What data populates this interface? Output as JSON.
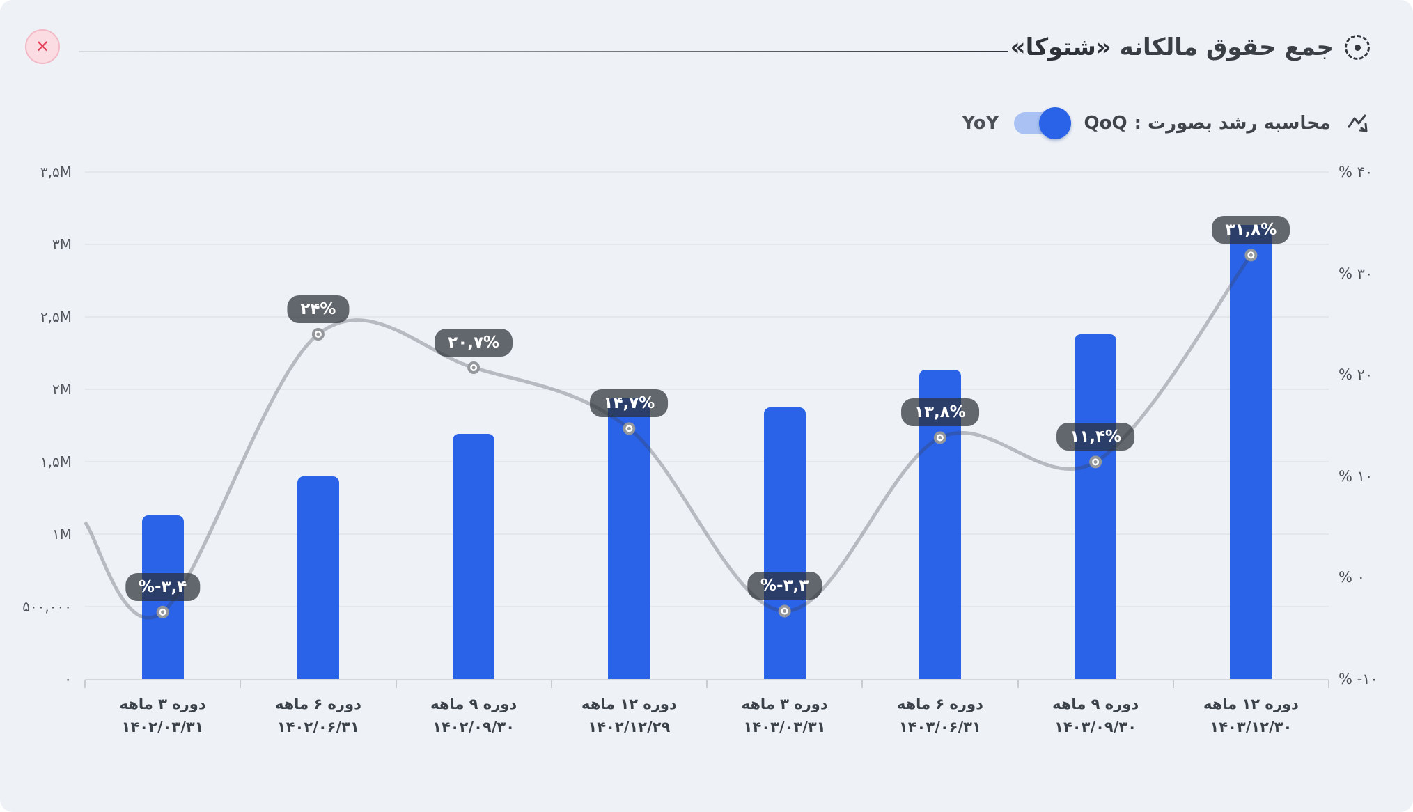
{
  "header": {
    "title_prefix": "جمع حقوق مالکانه ",
    "title_company": "«شتوکا»",
    "close_icon": "✕"
  },
  "controls": {
    "growth_label": "محاسبه رشد بصورت :",
    "selected_option": "QoQ",
    "alt_option": "YoY",
    "accent_color": "#2a63e8",
    "track_color": "#a9c2f3"
  },
  "chart_data": {
    "type": "bar",
    "title": "جمع حقوق مالکانه «شتوکا»",
    "categories": [
      {
        "period": "دوره ۳ ماهه",
        "date": "۱۴۰۲/۰۳/۳۱"
      },
      {
        "period": "دوره ۶ ماهه",
        "date": "۱۴۰۲/۰۶/۳۱"
      },
      {
        "period": "دوره ۹ ماهه",
        "date": "۱۴۰۲/۰۹/۳۰"
      },
      {
        "period": "دوره ۱۲ ماهه",
        "date": "۱۴۰۲/۱۲/۲۹"
      },
      {
        "period": "دوره ۳ ماهه",
        "date": "۱۴۰۳/۰۳/۳۱"
      },
      {
        "period": "دوره ۶ ماهه",
        "date": "۱۴۰۳/۰۶/۳۱"
      },
      {
        "period": "دوره ۹ ماهه",
        "date": "۱۴۰۳/۰۹/۳۰"
      },
      {
        "period": "دوره ۱۲ ماهه",
        "date": "۱۴۰۳/۱۲/۳۰"
      }
    ],
    "series": [
      {
        "name": "جمع حقوق مالکانه",
        "type": "bar",
        "axis": "left",
        "color": "#2a63e8",
        "values": [
          1130000,
          1401000,
          1691000,
          1940000,
          1876000,
          2135000,
          2378000,
          3134000
        ]
      },
      {
        "name": "رشد QoQ",
        "type": "line",
        "axis": "right",
        "color": "rgba(55,60,68,0.30)",
        "values": [
          -3.4,
          24,
          20.7,
          14.7,
          -3.3,
          13.8,
          11.4,
          31.8
        ],
        "point_labels": [
          "%-۳,۴",
          "۲۴%",
          "۲۰,۷%",
          "۱۴,۷%",
          "%-۳,۳",
          "۱۳,۸%",
          "۱۱,۴%",
          "۳۱,۸%"
        ]
      }
    ],
    "left_axis": {
      "max": 3500000,
      "min": 0,
      "ticks": [
        {
          "value": 3500000,
          "label": "۳,۵M"
        },
        {
          "value": 3000000,
          "label": "۳M"
        },
        {
          "value": 2500000,
          "label": "۲,۵M"
        },
        {
          "value": 2000000,
          "label": "۲M"
        },
        {
          "value": 1500000,
          "label": "۱,۵M"
        },
        {
          "value": 1000000,
          "label": "۱M"
        },
        {
          "value": 500000,
          "label": "۵۰۰,۰۰۰"
        },
        {
          "value": 0,
          "label": "۰"
        }
      ]
    },
    "right_axis": {
      "max": 40,
      "min": -10,
      "ticks": [
        {
          "value": 40,
          "label": "% ۴۰"
        },
        {
          "value": 30,
          "label": "% ۳۰"
        },
        {
          "value": 20,
          "label": "% ۲۰"
        },
        {
          "value": 10,
          "label": "% ۱۰"
        },
        {
          "value": 0,
          "label": "% ۰"
        },
        {
          "value": -10,
          "label": "% -۱۰"
        }
      ]
    },
    "grid": true,
    "legend_position": "none"
  }
}
